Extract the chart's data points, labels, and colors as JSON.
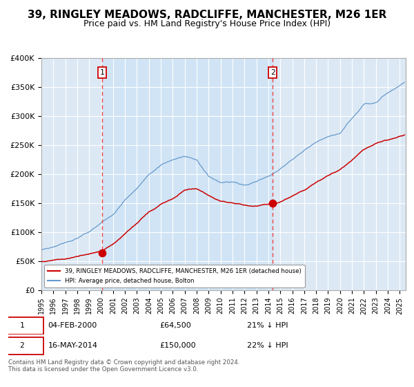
{
  "title": "39, RINGLEY MEADOWS, RADCLIFFE, MANCHESTER, M26 1ER",
  "subtitle": "Price paid vs. HM Land Registry's House Price Index (HPI)",
  "title_fontsize": 11,
  "subtitle_fontsize": 9,
  "background_color": "#ffffff",
  "plot_bg_color": "#dce9f5",
  "grid_color": "#ffffff",
  "ylabel_ticks": [
    "£0",
    "£50K",
    "£100K",
    "£150K",
    "£200K",
    "£250K",
    "£300K",
    "£350K",
    "£400K"
  ],
  "ytick_values": [
    0,
    50000,
    100000,
    150000,
    200000,
    250000,
    300000,
    350000,
    400000
  ],
  "ylim": [
    0,
    400000
  ],
  "xlim_start": 1995.0,
  "xlim_end": 2025.5,
  "vline1_x": 2000.09,
  "vline2_x": 2014.37,
  "marker1_y": 64500,
  "marker1_x": 2000.09,
  "marker2_y": 150000,
  "marker2_x": 2014.37,
  "sale1_date": "04-FEB-2000",
  "sale1_price": "£64,500",
  "sale1_pct": "21% ↓ HPI",
  "sale2_date": "16-MAY-2014",
  "sale2_price": "£150,000",
  "sale2_pct": "22% ↓ HPI",
  "legend_label_red": "39, RINGLEY MEADOWS, RADCLIFFE, MANCHESTER, M26 1ER (detached house)",
  "legend_label_blue": "HPI: Average price, detached house, Bolton",
  "footer": "Contains HM Land Registry data © Crown copyright and database right 2024.\nThis data is licensed under the Open Government Licence v3.0.",
  "red_color": "#cc0000",
  "blue_color": "#6699cc",
  "marker_color": "#cc0000",
  "vline_color": "#ee4444",
  "shading_color": "#d0e4f5",
  "t_points": [
    1995.0,
    1996.0,
    1997.0,
    1998.0,
    1999.0,
    2000.0,
    2001.0,
    2002.0,
    2003.0,
    2004.0,
    2005.0,
    2006.0,
    2007.0,
    2008.0,
    2009.0,
    2010.0,
    2011.0,
    2012.0,
    2013.0,
    2014.0,
    2015.0,
    2016.0,
    2017.0,
    2018.0,
    2019.0,
    2020.0,
    2021.0,
    2022.0,
    2023.0,
    2024.0,
    2025.5
  ],
  "hpi_vals": [
    70000,
    75000,
    82000,
    90000,
    100000,
    115000,
    130000,
    155000,
    175000,
    200000,
    215000,
    225000,
    230000,
    225000,
    195000,
    185000,
    185000,
    182000,
    186000,
    196000,
    210000,
    225000,
    240000,
    255000,
    265000,
    270000,
    295000,
    320000,
    325000,
    340000,
    360000
  ],
  "red_vals": [
    50000,
    52000,
    55000,
    58000,
    62000,
    68000,
    80000,
    97000,
    115000,
    135000,
    148000,
    158000,
    172000,
    175000,
    162000,
    153000,
    150000,
    147000,
    145000,
    148000,
    153000,
    162000,
    174000,
    186000,
    198000,
    208000,
    225000,
    242000,
    252000,
    258000,
    268000
  ]
}
